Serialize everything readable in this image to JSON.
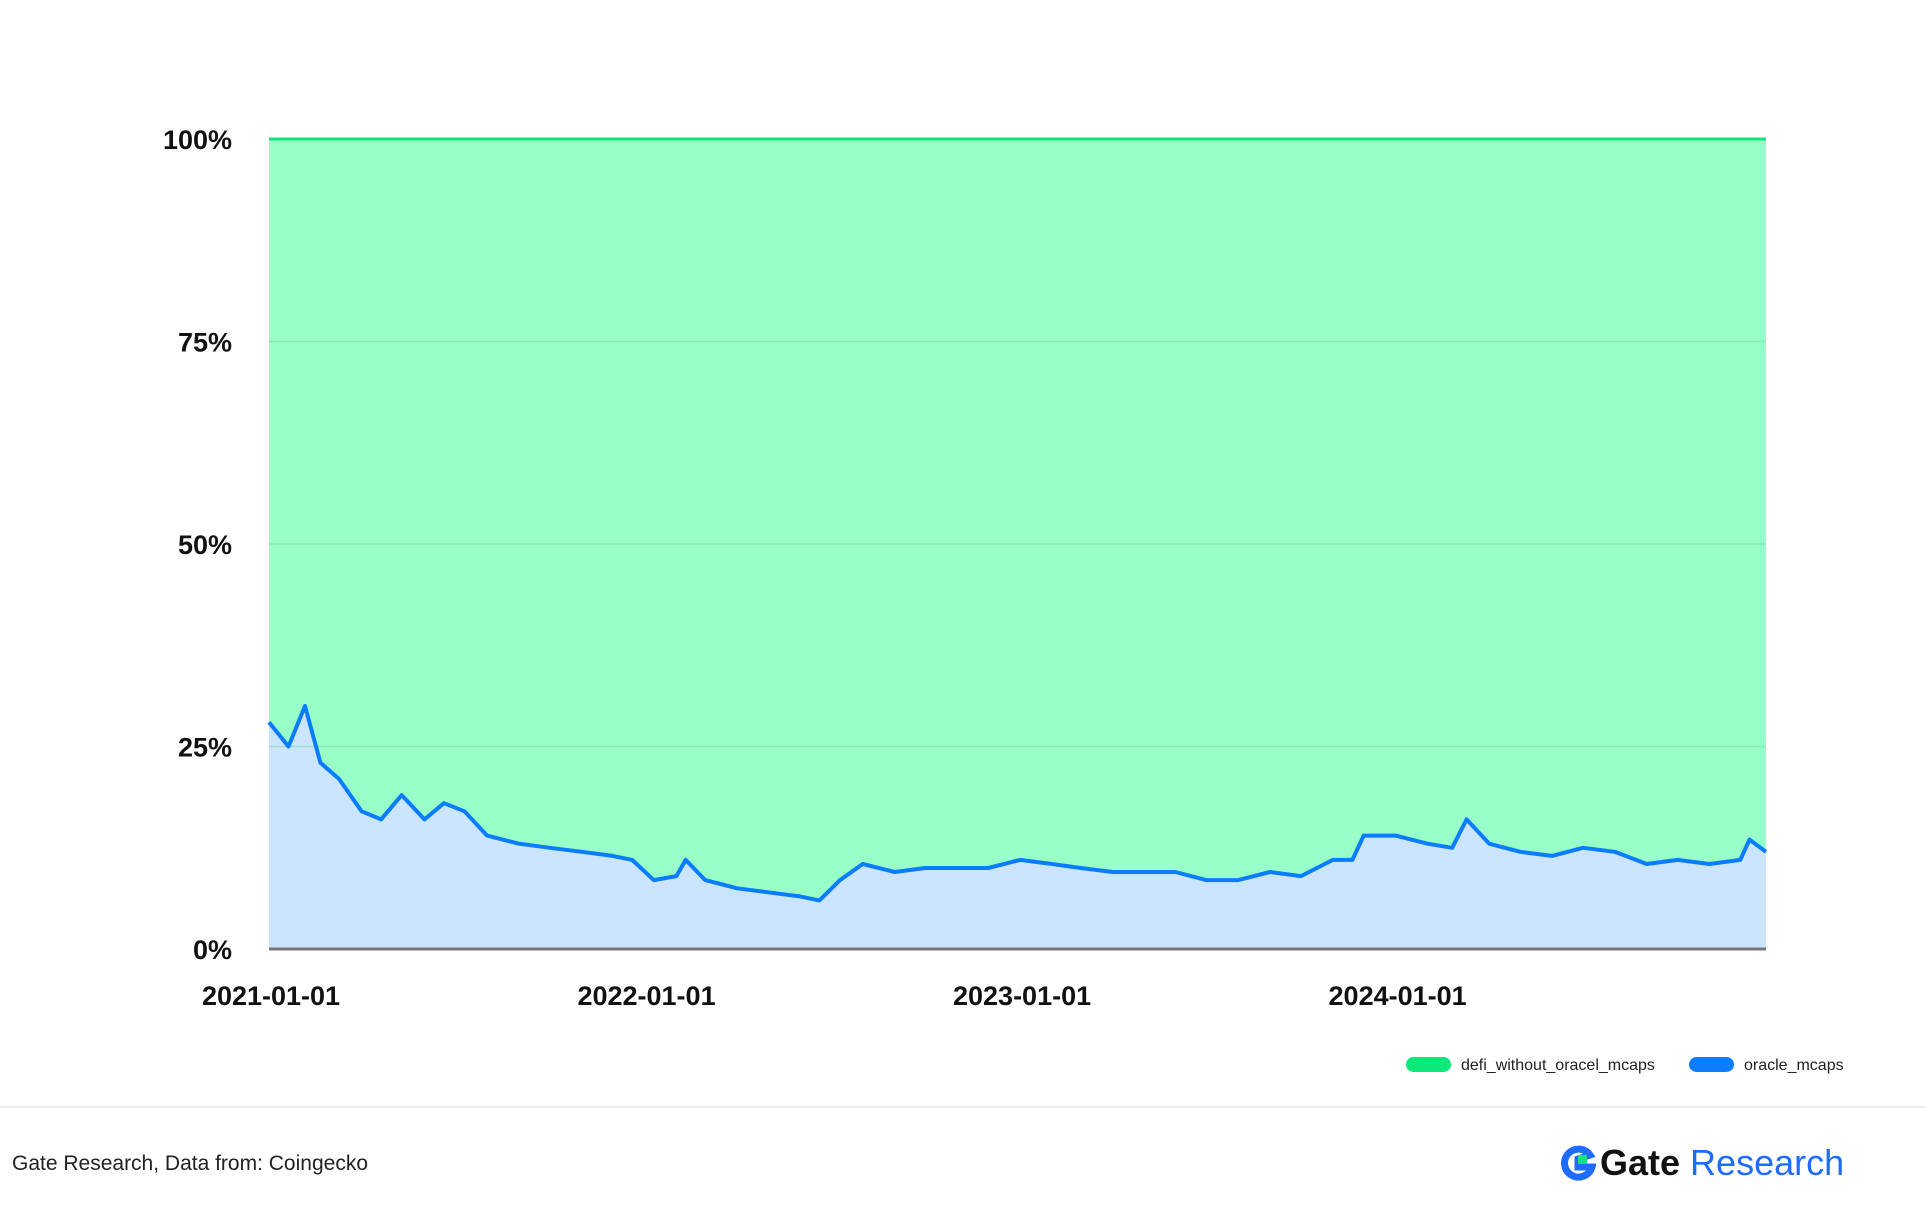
{
  "chart_data": {
    "type": "area",
    "stacked": "percent",
    "title": "",
    "xlabel": "",
    "ylabel": "",
    "ylim": [
      0,
      100
    ],
    "yticks": [
      "0%",
      "25%",
      "50%",
      "75%",
      "100%"
    ],
    "xticks": [
      "2021-01-01",
      "2022-01-01",
      "2023-01-01",
      "2024-01-01"
    ],
    "xlim": [
      "2021-01-01",
      "2024-12-26"
    ],
    "grid": true,
    "legend_position": "bottom-right",
    "x": [
      "2021-01-01",
      "2021-01-20",
      "2021-02-05",
      "2021-02-20",
      "2021-03-10",
      "2021-04-01",
      "2021-04-20",
      "2021-05-10",
      "2021-06-01",
      "2021-06-20",
      "2021-07-10",
      "2021-08-01",
      "2021-09-01",
      "2021-10-01",
      "2021-11-01",
      "2021-12-01",
      "2021-12-20",
      "2022-01-10",
      "2022-02-01",
      "2022-02-10",
      "2022-03-01",
      "2022-04-01",
      "2022-05-01",
      "2022-06-01",
      "2022-06-20",
      "2022-07-10",
      "2022-08-01",
      "2022-09-01",
      "2022-10-01",
      "2022-11-01",
      "2022-12-01",
      "2023-01-01",
      "2023-02-01",
      "2023-03-01",
      "2023-04-01",
      "2023-05-01",
      "2023-06-01",
      "2023-07-01",
      "2023-08-01",
      "2023-09-01",
      "2023-10-01",
      "2023-11-01",
      "2023-11-20",
      "2023-12-01",
      "2024-01-01",
      "2024-02-01",
      "2024-02-25",
      "2024-03-10",
      "2024-04-01",
      "2024-05-01",
      "2024-06-01",
      "2024-07-01",
      "2024-08-01",
      "2024-09-01",
      "2024-10-01",
      "2024-11-01",
      "2024-12-01",
      "2024-12-10",
      "2024-12-26"
    ],
    "series": [
      {
        "name": "oracle_mcaps",
        "color": "#0a7cff",
        "fill": "#cce5ff",
        "values": [
          28,
          25,
          30,
          23,
          21,
          17,
          16,
          19,
          16,
          18,
          17,
          14,
          13,
          12.5,
          12,
          11.5,
          11,
          8.5,
          9,
          11,
          8.5,
          7.5,
          7,
          6.5,
          6,
          8.5,
          10.5,
          9.5,
          10,
          10,
          10,
          11,
          10.5,
          10,
          9.5,
          9.5,
          9.5,
          8.5,
          8.5,
          9.5,
          9,
          11,
          11,
          14,
          14,
          13,
          12.5,
          16,
          13,
          12,
          11.5,
          12.5,
          12,
          10.5,
          11,
          10.5,
          11,
          13.5,
          12
        ]
      },
      {
        "name": "defi_without_oracel_mcaps",
        "color": "#0ce87a",
        "fill": "#99ffc9",
        "values": "remainder_to_100"
      }
    ]
  },
  "footer": {
    "source": "Gate Research, Data from: Coingecko",
    "logo_text": [
      "Gate",
      "Research"
    ]
  }
}
